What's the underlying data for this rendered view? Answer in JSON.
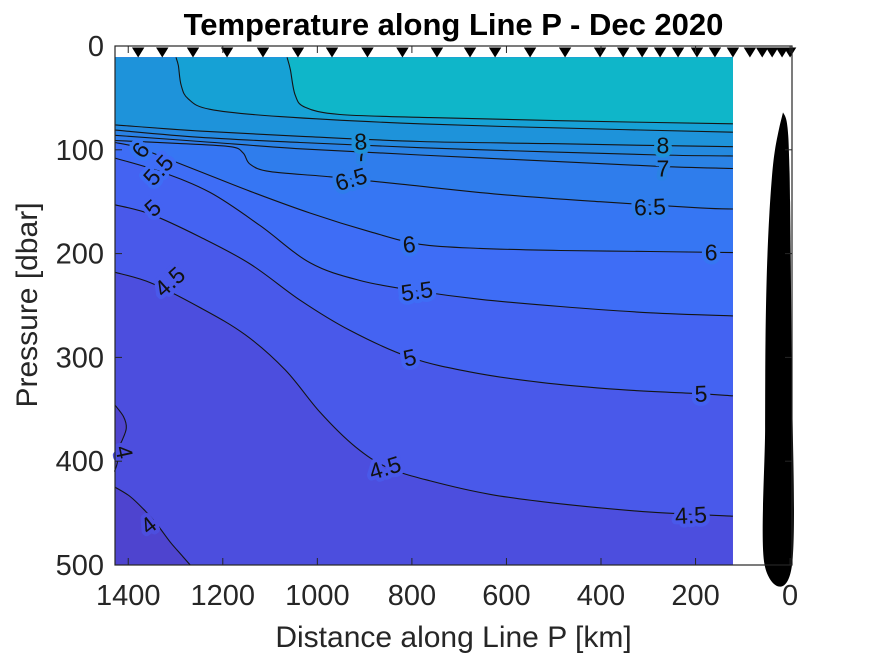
{
  "chart_data": {
    "type": "contour",
    "title": "Temperature along Line P - Dec 2020",
    "xlabel": "Distance along Line P [km]",
    "ylabel": "Pressure [dbar]",
    "x_ticks": [
      1400,
      1200,
      1000,
      800,
      600,
      400,
      200,
      0
    ],
    "y_ticks": [
      0,
      100,
      200,
      300,
      400,
      500
    ],
    "xlim": [
      1428,
      -4
    ],
    "ylim": [
      0,
      500
    ],
    "x_axis_reversed": true,
    "grid": false,
    "data_extent": {
      "d_max": 1428,
      "d_min": 121,
      "p_min": 11,
      "p_max": 500
    },
    "levels": [
      4,
      4.5,
      5,
      5.5,
      6,
      6.5,
      7,
      7.5,
      8,
      8.5,
      9
    ],
    "bands": [
      {
        "max": 4,
        "color": "#4E44CF"
      },
      {
        "min": 4,
        "max": 4.5,
        "color": "#4C4EDE"
      },
      {
        "min": 4.5,
        "max": 5,
        "color": "#4959EA"
      },
      {
        "min": 5,
        "max": 5.5,
        "color": "#4463F2"
      },
      {
        "min": 5.5,
        "max": 6,
        "color": "#3E6DF6"
      },
      {
        "min": 6,
        "max": 6.5,
        "color": "#3676F3"
      },
      {
        "min": 6.5,
        "max": 7,
        "color": "#2F7DEC"
      },
      {
        "min": 7,
        "max": 7.5,
        "color": "#2A82E5"
      },
      {
        "min": 7.5,
        "max": 8,
        "color": "#2489DF"
      },
      {
        "min": 8,
        "max": 8.5,
        "color": "#1E93DA"
      },
      {
        "min": 8.5,
        "max": 9,
        "color": "#16A1D5"
      },
      {
        "min": 9,
        "color": "#0FB6C9"
      }
    ],
    "contours": [
      {
        "level": 4,
        "close": "bottom",
        "points": [
          [
            1428,
            425
          ],
          [
            1396,
            434
          ],
          [
            1364,
            448
          ],
          [
            1339,
            461
          ],
          [
            1311,
            478
          ],
          [
            1286,
            491
          ],
          [
            1269,
            500
          ]
        ],
        "labels": [
          {
            "d": 1347,
            "p": 460,
            "rot": -38
          }
        ]
      },
      {
        "level": 4,
        "close": "pocket",
        "points": [
          [
            1428,
            346
          ],
          [
            1410,
            357
          ],
          [
            1404,
            368
          ],
          [
            1413,
            380
          ],
          [
            1425,
            391
          ],
          [
            1423,
            401
          ],
          [
            1429,
            410
          ]
        ],
        "labels": [
          {
            "d": 1425,
            "p": 385,
            "rot": 78
          }
        ]
      },
      {
        "level": 4.5,
        "close": "right",
        "points": [
          [
            1428,
            218
          ],
          [
            1353,
            228
          ],
          [
            1248,
            252
          ],
          [
            1153,
            278
          ],
          [
            1068,
            312
          ],
          [
            994,
            353
          ],
          [
            920,
            386
          ],
          [
            852,
            406
          ],
          [
            761,
            419
          ],
          [
            634,
            432
          ],
          [
            486,
            441
          ],
          [
            296,
            449
          ],
          [
            121,
            453
          ]
        ],
        "labels": [
          {
            "d": 1301,
            "p": 225,
            "rot": -42
          },
          {
            "d": 852,
            "p": 406,
            "rot": -17
          },
          {
            "d": 209,
            "p": 452,
            "rot": -3
          }
        ]
      },
      {
        "level": 5,
        "close": "right",
        "points": [
          [
            1428,
            153
          ],
          [
            1353,
            162
          ],
          [
            1248,
            184
          ],
          [
            1142,
            210
          ],
          [
            1036,
            245
          ],
          [
            931,
            274
          ],
          [
            804,
            300
          ],
          [
            677,
            314
          ],
          [
            529,
            324
          ],
          [
            359,
            331
          ],
          [
            190,
            335
          ],
          [
            121,
            337
          ]
        ],
        "labels": [
          {
            "d": 1337,
            "p": 154,
            "rot": -42
          },
          {
            "d": 801,
            "p": 300,
            "rot": -12
          },
          {
            "d": 188,
            "p": 335,
            "rot": -2
          }
        ]
      },
      {
        "level": 5.5,
        "close": "right",
        "points": [
          [
            1428,
            108
          ],
          [
            1332,
            121
          ],
          [
            1227,
            141
          ],
          [
            1121,
            173
          ],
          [
            1015,
            209
          ],
          [
            909,
            226
          ],
          [
            789,
            236
          ],
          [
            656,
            244
          ],
          [
            486,
            251
          ],
          [
            296,
            257
          ],
          [
            121,
            260
          ]
        ],
        "labels": [
          {
            "d": 1324,
            "p": 117,
            "rot": -48
          },
          {
            "d": 787,
            "p": 236,
            "rot": -8
          }
        ]
      },
      {
        "level": 6,
        "close": "right",
        "points": [
          [
            1428,
            93
          ],
          [
            1385,
            97
          ],
          [
            1332,
            106
          ],
          [
            1248,
            121
          ],
          [
            1142,
            140
          ],
          [
            1015,
            161
          ],
          [
            888,
            179
          ],
          [
            783,
            191
          ],
          [
            656,
            195
          ],
          [
            486,
            197
          ],
          [
            296,
            198
          ],
          [
            121,
            199
          ]
        ],
        "labels": [
          {
            "d": 1360,
            "p": 97,
            "rot": -55
          },
          {
            "d": 804,
            "p": 191,
            "rot": -6
          },
          {
            "d": 167,
            "p": 199,
            "rot": 0
          }
        ]
      },
      {
        "level": 6.5,
        "close": "right",
        "points": [
          [
            1428,
            91
          ],
          [
            1290,
            94
          ],
          [
            1184,
            97
          ],
          [
            1157,
            103
          ],
          [
            1142,
            114
          ],
          [
            1100,
            121
          ],
          [
            973,
            126
          ],
          [
            825,
            133
          ],
          [
            613,
            143
          ],
          [
            402,
            150
          ],
          [
            190,
            156
          ],
          [
            121,
            157
          ]
        ],
        "labels": [
          {
            "d": 924,
            "p": 128,
            "rot": -16
          },
          {
            "d": 296,
            "p": 155,
            "rot": -2
          }
        ]
      },
      {
        "level": 7,
        "close": "right",
        "points": [
          [
            1428,
            86
          ],
          [
            1248,
            92
          ],
          [
            1036,
            99
          ],
          [
            783,
            105
          ],
          [
            508,
            111
          ],
          [
            275,
            116
          ],
          [
            121,
            118
          ]
        ],
        "labels": [
          {
            "d": 905,
            "p": 103,
            "rot": -6
          },
          {
            "d": 269,
            "p": 118,
            "rot": 0
          }
        ]
      },
      {
        "level": 7.5,
        "close": "right",
        "points": [
          [
            1428,
            81
          ],
          [
            1248,
            88
          ],
          [
            1036,
            93
          ],
          [
            783,
            98
          ],
          [
            508,
            102
          ],
          [
            275,
            105
          ],
          [
            121,
            106
          ]
        ],
        "labels": []
      },
      {
        "level": 8,
        "close": "right",
        "points": [
          [
            1428,
            76
          ],
          [
            1248,
            82
          ],
          [
            1036,
            87
          ],
          [
            783,
            92
          ],
          [
            508,
            94
          ],
          [
            275,
            96
          ],
          [
            121,
            97
          ]
        ],
        "labels": [
          {
            "d": 907,
            "p": 92,
            "rot": -4
          },
          {
            "d": 269,
            "p": 96,
            "rot": 0
          }
        ]
      },
      {
        "level": 8.5,
        "close": "right",
        "points": [
          [
            1299,
            11
          ],
          [
            1294,
            19
          ],
          [
            1288,
            38
          ],
          [
            1273,
            51
          ],
          [
            1227,
            61
          ],
          [
            1079,
            68
          ],
          [
            783,
            75
          ],
          [
            402,
            80
          ],
          [
            121,
            83
          ]
        ],
        "labels": []
      },
      {
        "level": 9,
        "close": "right",
        "points": [
          [
            1064,
            11
          ],
          [
            1057,
            23
          ],
          [
            1047,
            47
          ],
          [
            1026,
            59
          ],
          [
            952,
            66
          ],
          [
            761,
            69
          ],
          [
            486,
            72
          ],
          [
            121,
            75
          ]
        ],
        "labels": []
      }
    ],
    "station_marker": {
      "shape": "triangle-down",
      "color": "#000000"
    },
    "station_distances_km": [
      1379,
      1328,
      1263,
      1191,
      1115,
      1041,
      969,
      894,
      820,
      747,
      677,
      624,
      550,
      476,
      402,
      353,
      313,
      275,
      237,
      197,
      159,
      121,
      85,
      59,
      38,
      17,
      0
    ],
    "bathymetry_color": "#000000",
    "bathymetry_outline": [
      [
        15,
        64
      ],
      [
        23,
        79
      ],
      [
        32,
        100
      ],
      [
        38,
        124
      ],
      [
        44,
        163
      ],
      [
        49,
        216
      ],
      [
        52,
        283
      ],
      [
        53,
        370
      ],
      [
        54,
        500
      ],
      [
        -4,
        500
      ],
      [
        -3,
        300
      ],
      [
        0,
        150
      ],
      [
        2,
        110
      ],
      [
        4,
        86
      ],
      [
        8,
        71
      ],
      [
        15,
        64
      ]
    ],
    "axis_color": "#262626",
    "contour_line_color": "#141414"
  }
}
